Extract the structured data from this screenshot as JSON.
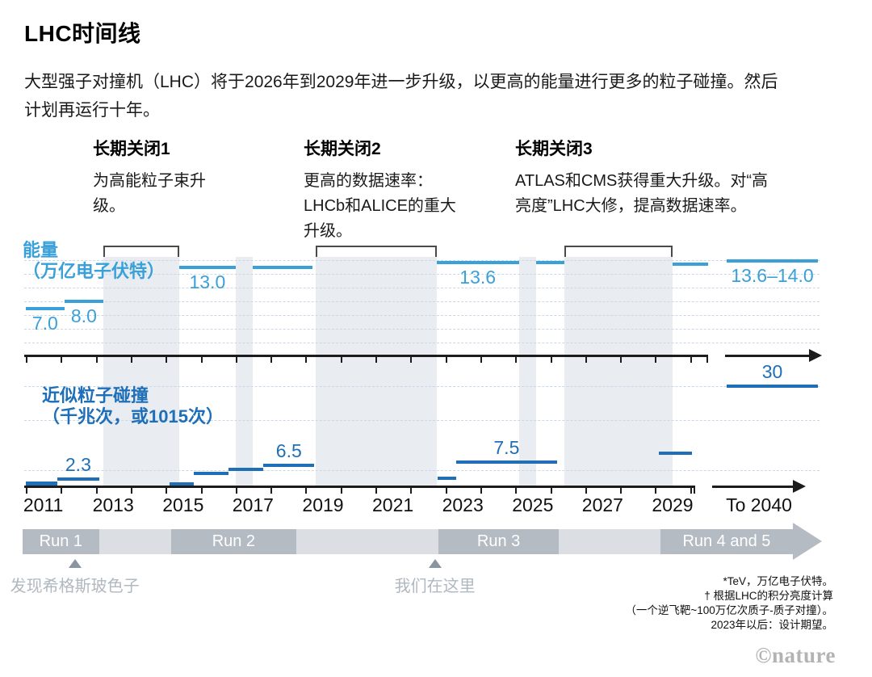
{
  "header": {
    "title": "LHC时间线",
    "subtitle": [
      "大型强子对撞机（LHC）将于2026年到2029年进一步升级，以更高的能量进行更多的粒子碰撞。然后",
      "计划再运行十年。"
    ]
  },
  "shutdowns": [
    {
      "title": "长期关闭1",
      "desc": [
        "为高能粒子束升",
        "级。"
      ]
    },
    {
      "title": "长期关闭2",
      "desc": [
        "更高的数据速率：",
        "LHCb和ALICE的重大",
        "升级。"
      ]
    },
    {
      "title": "长期关闭3",
      "desc": [
        "ATLAS和CMS获得重大升级。对“高",
        "亮度”LHC大修，提高数据速率。"
      ]
    }
  ],
  "chart_data": {
    "type": "timeline",
    "colors": {
      "energy": "#3aa0da",
      "collisions": "#1e6fb7",
      "band": "#e9edf2",
      "grid": "#c9d8e8",
      "axis": "#1c1c1c",
      "bracket": "#4a4a4a",
      "run_dark": "#b4bbc3",
      "run_light": "#dbdfe3",
      "marker_text": "#b0b8c0",
      "marker_triangle": "#8a95a0"
    },
    "energy": {
      "label": [
        "能量",
        "（万亿电子伏特）"
      ],
      "unit": "TeV",
      "gridline_values": [
        2,
        4,
        6,
        8,
        10,
        12,
        14
      ],
      "segments": [
        {
          "start": 2011.0,
          "end": 2012.1,
          "value": 7.0,
          "label": "7.0"
        },
        {
          "start": 2012.1,
          "end": 2013.22,
          "value": 8.0,
          "label": "8.0"
        },
        {
          "start": 2015.39,
          "end": 2017.0,
          "value": 13.0,
          "label": "13.0"
        },
        {
          "start": 2017.5,
          "end": 2019.2,
          "value": 13.0,
          "label": null
        },
        {
          "start": 2022.75,
          "end": 2025.1,
          "value": 13.6,
          "label": "13.6"
        },
        {
          "start": 2025.6,
          "end": 2026.4,
          "value": 13.6,
          "label": null
        },
        {
          "start": 2029.5,
          "end": 2030.52,
          "value": 13.4,
          "label": null
        },
        {
          "start": 2031,
          "end": 2040,
          "value": 13.9,
          "label": "13.6–14.0",
          "future": true
        }
      ]
    },
    "collisions": {
      "label": [
        "近似粒子碰撞",
        "（千兆次，或1015次）"
      ],
      "gridline_values": [
        5,
        20,
        30
      ],
      "segments": [
        {
          "start": 2011.0,
          "end": 2011.9,
          "value": 1.2,
          "label": null,
          "thick": true
        },
        {
          "start": 2011.9,
          "end": 2013.1,
          "value": 2.3,
          "label": "2.3"
        },
        {
          "start": 2015.1,
          "end": 2015.8,
          "value": 1.0,
          "label": null
        },
        {
          "start": 2015.8,
          "end": 2016.8,
          "value": 4.0,
          "label": null
        },
        {
          "start": 2016.8,
          "end": 2017.8,
          "value": 5.2,
          "label": null
        },
        {
          "start": 2017.8,
          "end": 2019.25,
          "value": 6.5,
          "label": "6.5"
        },
        {
          "start": 2022.78,
          "end": 2023.3,
          "value": 2.7,
          "label": null
        },
        {
          "start": 2023.3,
          "end": 2026.2,
          "value": 7.5,
          "label": "7.5"
        },
        {
          "start": 2029.1,
          "end": 2030.05,
          "value": 10.0,
          "label": null
        },
        {
          "start": 2031,
          "end": 2040,
          "value": 30,
          "label": "30",
          "future": true
        }
      ]
    },
    "shutdown_bands": [
      {
        "start": 2013.22,
        "end": 2015.39,
        "bracket": true
      },
      {
        "start": 2017.0,
        "end": 2017.5,
        "bracket": false
      },
      {
        "start": 2019.3,
        "end": 2022.75,
        "bracket": true
      },
      {
        "start": 2025.1,
        "end": 2025.6,
        "bracket": false
      },
      {
        "start": 2026.4,
        "end": 2029.5,
        "bracket": true
      }
    ],
    "runs": [
      {
        "label": "Run 1",
        "start": 2010.9,
        "end": 2013.1,
        "dark": true,
        "arrow": false
      },
      {
        "label": "",
        "start": 2013.1,
        "end": 2015.15,
        "dark": false,
        "arrow": false
      },
      {
        "label": "Run 2",
        "start": 2015.15,
        "end": 2018.74,
        "dark": true,
        "arrow": false
      },
      {
        "label": "",
        "start": 2018.74,
        "end": 2022.8,
        "dark": false,
        "arrow": false
      },
      {
        "label": "Run 3",
        "start": 2022.8,
        "end": 2026.25,
        "dark": true,
        "arrow": false
      },
      {
        "label": "",
        "start": 2026.25,
        "end": 2029.15,
        "dark": false,
        "arrow": false
      },
      {
        "label": "Run 4 and 5",
        "start": 2029.15,
        "end": 2030.9,
        "dark": true,
        "arrow": true
      }
    ],
    "markers": [
      {
        "year": 2012.4,
        "text": "发现希格斯玻色子"
      },
      {
        "year": 2022.7,
        "text": "我们在这里"
      }
    ],
    "x_axis": {
      "tick_years_start": 2011,
      "tick_years_end": 2030,
      "year_labels": [
        {
          "year": 2011,
          "text": "2011"
        },
        {
          "year": 2013,
          "text": "2013"
        },
        {
          "year": 2015,
          "text": "2015"
        },
        {
          "year": 2017,
          "text": "2017"
        },
        {
          "year": 2019,
          "text": "2019"
        },
        {
          "year": 2021,
          "text": "2021"
        },
        {
          "year": 2023,
          "text": "2023"
        },
        {
          "year": 2025,
          "text": "2025"
        },
        {
          "year": 2027,
          "text": "2027"
        },
        {
          "year": 2029,
          "text": "2029"
        }
      ],
      "future_label": "To 2040"
    }
  },
  "footnotes": [
    "*TeV，万亿电子伏特。",
    "† 根据LHC的积分亮度计算",
    "（一个逆飞靶~100万亿次质子-质子对撞）。",
    "2023年以后：设计期望。"
  ],
  "credit": "©nature"
}
